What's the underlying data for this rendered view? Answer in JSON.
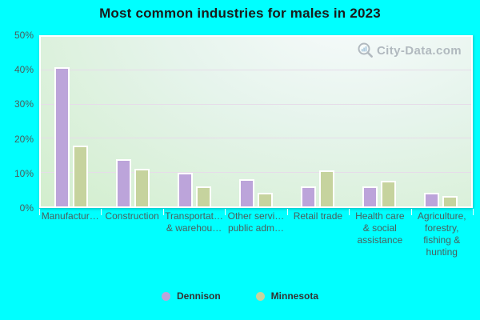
{
  "title": "Most common industries for males in 2023",
  "watermark": {
    "text": "City-Data.com"
  },
  "colors": {
    "background": "#00ffff",
    "dennison_bar": "#bca4da",
    "minnesota_bar": "#c6d39e",
    "gridline": "#e6dce9",
    "axis_text": "#49605e",
    "title_text": "#1a1a1a",
    "watermark_text": "#a2aab2"
  },
  "chart_data": {
    "type": "bar",
    "title": "Most common industries for males in 2023",
    "categories": [
      "Manufacturing",
      "Construction",
      "Transportation & warehousing",
      "Other services, public administration",
      "Retail trade",
      "Health care & social assistance",
      "Agriculture, forestry, fishing & hunting"
    ],
    "category_label_lines": [
      [
        "Manufactur…"
      ],
      [
        "Construction"
      ],
      [
        "Transportat…",
        "& warehou…"
      ],
      [
        "Other servi…",
        "public adm…"
      ],
      [
        "Retail trade"
      ],
      [
        "Health care",
        "& social",
        "assistance"
      ],
      [
        "Agriculture,",
        "forestry,",
        "fishing &",
        "hunting"
      ]
    ],
    "series": [
      {
        "name": "Dennison",
        "color": "#bca4da",
        "values": [
          41,
          14,
          10,
          8,
          6,
          6,
          4
        ]
      },
      {
        "name": "Minnesota",
        "color": "#c6d39e",
        "values": [
          18,
          11,
          6,
          4,
          10.5,
          7.5,
          3
        ]
      }
    ],
    "xlabel": "",
    "ylabel": "",
    "ylim": [
      0,
      50
    ],
    "y_ticks": [
      "0%",
      "10%",
      "20%",
      "30%",
      "40%",
      "50%"
    ],
    "grid": true,
    "legend_position": "bottom"
  }
}
